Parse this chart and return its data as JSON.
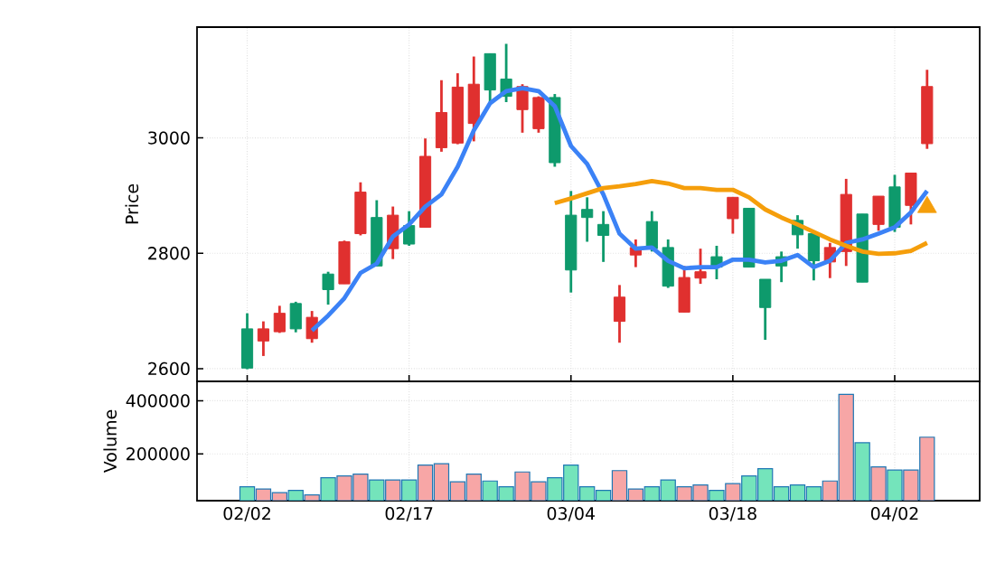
{
  "chart_data": [
    {
      "type": "candlestick",
      "ylabel": "Price",
      "grid": true,
      "tick_labels": "y",
      "categories": [
        null,
        null,
        null,
        null,
        null,
        null,
        null,
        null,
        null,
        null,
        null,
        null,
        null,
        null,
        null,
        null,
        null,
        null,
        null,
        null,
        null,
        null,
        null,
        null,
        null,
        null,
        null,
        null,
        null,
        null,
        null,
        null,
        null,
        null,
        null,
        null,
        null,
        null,
        null,
        null,
        null,
        null,
        null
      ],
      "ohlc": [
        [
          2601,
          2696,
          2599,
          2669
        ],
        [
          2669,
          2682,
          2622,
          2648
        ],
        [
          2696,
          2709,
          2662,
          2664
        ],
        [
          2669,
          2716,
          2663,
          2713
        ],
        [
          2689,
          2700,
          2645,
          2652
        ],
        [
          2737,
          2768,
          2711,
          2764
        ],
        [
          2820,
          2822,
          2747,
          2747
        ],
        [
          2906,
          2923,
          2831,
          2834
        ],
        [
          2778,
          2892,
          2778,
          2862
        ],
        [
          2866,
          2881,
          2790,
          2808
        ],
        [
          2816,
          2873,
          2813,
          2848
        ],
        [
          2968,
          2999,
          2845,
          2845
        ],
        [
          3044,
          3100,
          2976,
          2983
        ],
        [
          3088,
          3112,
          2989,
          2991
        ],
        [
          3093,
          3141,
          2994,
          3025
        ],
        [
          3083,
          3146,
          3062,
          3146
        ],
        [
          3072,
          3163,
          3062,
          3102
        ],
        [
          3089,
          3093,
          3009,
          3049
        ],
        [
          3070,
          3072,
          3009,
          3016
        ],
        [
          2957,
          3076,
          2950,
          3070
        ],
        [
          2771,
          2908,
          2732,
          2866
        ],
        [
          2862,
          2897,
          2820,
          2876
        ],
        [
          2831,
          2873,
          2785,
          2850
        ],
        [
          2724,
          2745,
          2645,
          2682
        ],
        [
          2810,
          2824,
          2776,
          2797
        ],
        [
          2808,
          2873,
          2803,
          2855
        ],
        [
          2743,
          2824,
          2740,
          2810
        ],
        [
          2758,
          2778,
          2698,
          2698
        ],
        [
          2768,
          2808,
          2747,
          2757
        ],
        [
          2776,
          2813,
          2755,
          2794
        ],
        [
          2897,
          2897,
          2834,
          2860
        ],
        [
          2776,
          2878,
          2776,
          2878
        ],
        [
          2706,
          2755,
          2650,
          2755
        ],
        [
          2778,
          2803,
          2750,
          2794
        ],
        [
          2832,
          2866,
          2808,
          2857
        ],
        [
          2787,
          2834,
          2753,
          2834
        ],
        [
          2810,
          2818,
          2757,
          2785
        ],
        [
          2902,
          2929,
          2778,
          2803
        ],
        [
          2750,
          2868,
          2750,
          2868
        ],
        [
          2899,
          2899,
          2839,
          2850
        ],
        [
          2845,
          2936,
          2837,
          2915
        ],
        [
          2939,
          2939,
          2850,
          2883
        ],
        [
          3089,
          3118,
          2981,
          2990
        ]
      ],
      "colors": [
        "#0e9a6c",
        "#e0302f",
        "#e0302f",
        "#0e9a6c",
        "#e0302f",
        "#0e9a6c",
        "#e0302f",
        "#e0302f",
        "#0e9a6c",
        "#e0302f",
        "#0e9a6c",
        "#e0302f",
        "#e0302f",
        "#e0302f",
        "#e0302f",
        "#0e9a6c",
        "#0e9a6c",
        "#e0302f",
        "#e0302f",
        "#0e9a6c",
        "#0e9a6c",
        "#0e9a6c",
        "#0e9a6c",
        "#e0302f",
        "#e0302f",
        "#0e9a6c",
        "#0e9a6c",
        "#e0302f",
        "#e0302f",
        "#0e9a6c",
        "#e0302f",
        "#0e9a6c",
        "#0e9a6c",
        "#0e9a6c",
        "#0e9a6c",
        "#0e9a6c",
        "#e0302f",
        "#e0302f",
        "#0e9a6c",
        "#e0302f",
        "#0e9a6c",
        "#e0302f",
        "#e0302f"
      ],
      "series": [
        {
          "type": "line",
          "color": "#3b82f6",
          "marker": "none",
          "line_style": "solid",
          "values": [
            null,
            null,
            null,
            null,
            2666,
            2692,
            2722,
            2766,
            2782,
            2829,
            2850,
            2881,
            2902,
            2950,
            3013,
            3060,
            3081,
            3086,
            3081,
            3055,
            2986,
            2955,
            2902,
            2834,
            2808,
            2810,
            2787,
            2774,
            2776,
            2776,
            2789,
            2789,
            2784,
            2787,
            2797,
            2776,
            2787,
            2818,
            2824,
            2834,
            2845,
            2871,
            2908
          ]
        },
        {
          "type": "line",
          "color": "#f59e0b",
          "marker": "none",
          "line_style": "solid",
          "values": [
            null,
            null,
            null,
            null,
            null,
            null,
            null,
            null,
            null,
            null,
            null,
            null,
            null,
            null,
            null,
            null,
            null,
            null,
            null,
            2887,
            2895,
            2904,
            2913,
            2916,
            2920,
            2925,
            2921,
            2913,
            2913,
            2910,
            2910,
            2897,
            2876,
            2862,
            2850,
            2837,
            2824,
            2813,
            2803,
            2799,
            2800,
            2804,
            2818
          ]
        },
        {
          "type": "scatter",
          "color": "#f59e0b",
          "marker": "triangle",
          "values": [
            null,
            null,
            null,
            null,
            null,
            null,
            null,
            null,
            null,
            null,
            null,
            null,
            null,
            null,
            null,
            null,
            null,
            null,
            null,
            null,
            null,
            null,
            null,
            null,
            null,
            null,
            null,
            null,
            null,
            null,
            null,
            null,
            null,
            null,
            null,
            null,
            null,
            null,
            null,
            null,
            null,
            null,
            2880
          ]
        }
      ],
      "ylim": [
        2578,
        3192
      ],
      "yticks": [
        2600,
        2800,
        3000
      ]
    },
    {
      "type": "bar",
      "ylabel": "Volume",
      "grid": true,
      "categories": [
        "02/02",
        null,
        null,
        null,
        null,
        null,
        null,
        null,
        null,
        null,
        "02/17",
        null,
        null,
        null,
        null,
        null,
        null,
        null,
        null,
        null,
        "03/04",
        null,
        null,
        null,
        null,
        null,
        null,
        null,
        null,
        null,
        "03/18",
        null,
        null,
        null,
        null,
        null,
        null,
        null,
        null,
        null,
        "04/02",
        null,
        null
      ],
      "values": [
        76000,
        68000,
        54000,
        63000,
        46000,
        110000,
        117000,
        124000,
        102000,
        102000,
        102000,
        158000,
        163000,
        95000,
        124000,
        98000,
        76000,
        132000,
        95000,
        110000,
        158000,
        76000,
        63000,
        137000,
        68000,
        76000,
        102000,
        76000,
        83000,
        63000,
        88000,
        117000,
        144000,
        76000,
        83000,
        76000,
        98000,
        424000,
        242000,
        151000,
        139000,
        139000,
        263000
      ],
      "colors": [
        "#74e4bb",
        "#f7a6a6",
        "#f7a6a6",
        "#74e4bb",
        "#f7a6a6",
        "#74e4bb",
        "#f7a6a6",
        "#f7a6a6",
        "#74e4bb",
        "#f7a6a6",
        "#74e4bb",
        "#f7a6a6",
        "#f7a6a6",
        "#f7a6a6",
        "#f7a6a6",
        "#74e4bb",
        "#74e4bb",
        "#f7a6a6",
        "#f7a6a6",
        "#74e4bb",
        "#74e4bb",
        "#74e4bb",
        "#74e4bb",
        "#f7a6a6",
        "#f7a6a6",
        "#74e4bb",
        "#74e4bb",
        "#f7a6a6",
        "#f7a6a6",
        "#74e4bb",
        "#f7a6a6",
        "#74e4bb",
        "#74e4bb",
        "#74e4bb",
        "#74e4bb",
        "#74e4bb",
        "#f7a6a6",
        "#f7a6a6",
        "#74e4bb",
        "#f7a6a6",
        "#74e4bb",
        "#f7a6a6",
        "#f7a6a6"
      ],
      "ylim": [
        24000,
        473000
      ],
      "yticks": [
        200000,
        400000
      ]
    }
  ]
}
